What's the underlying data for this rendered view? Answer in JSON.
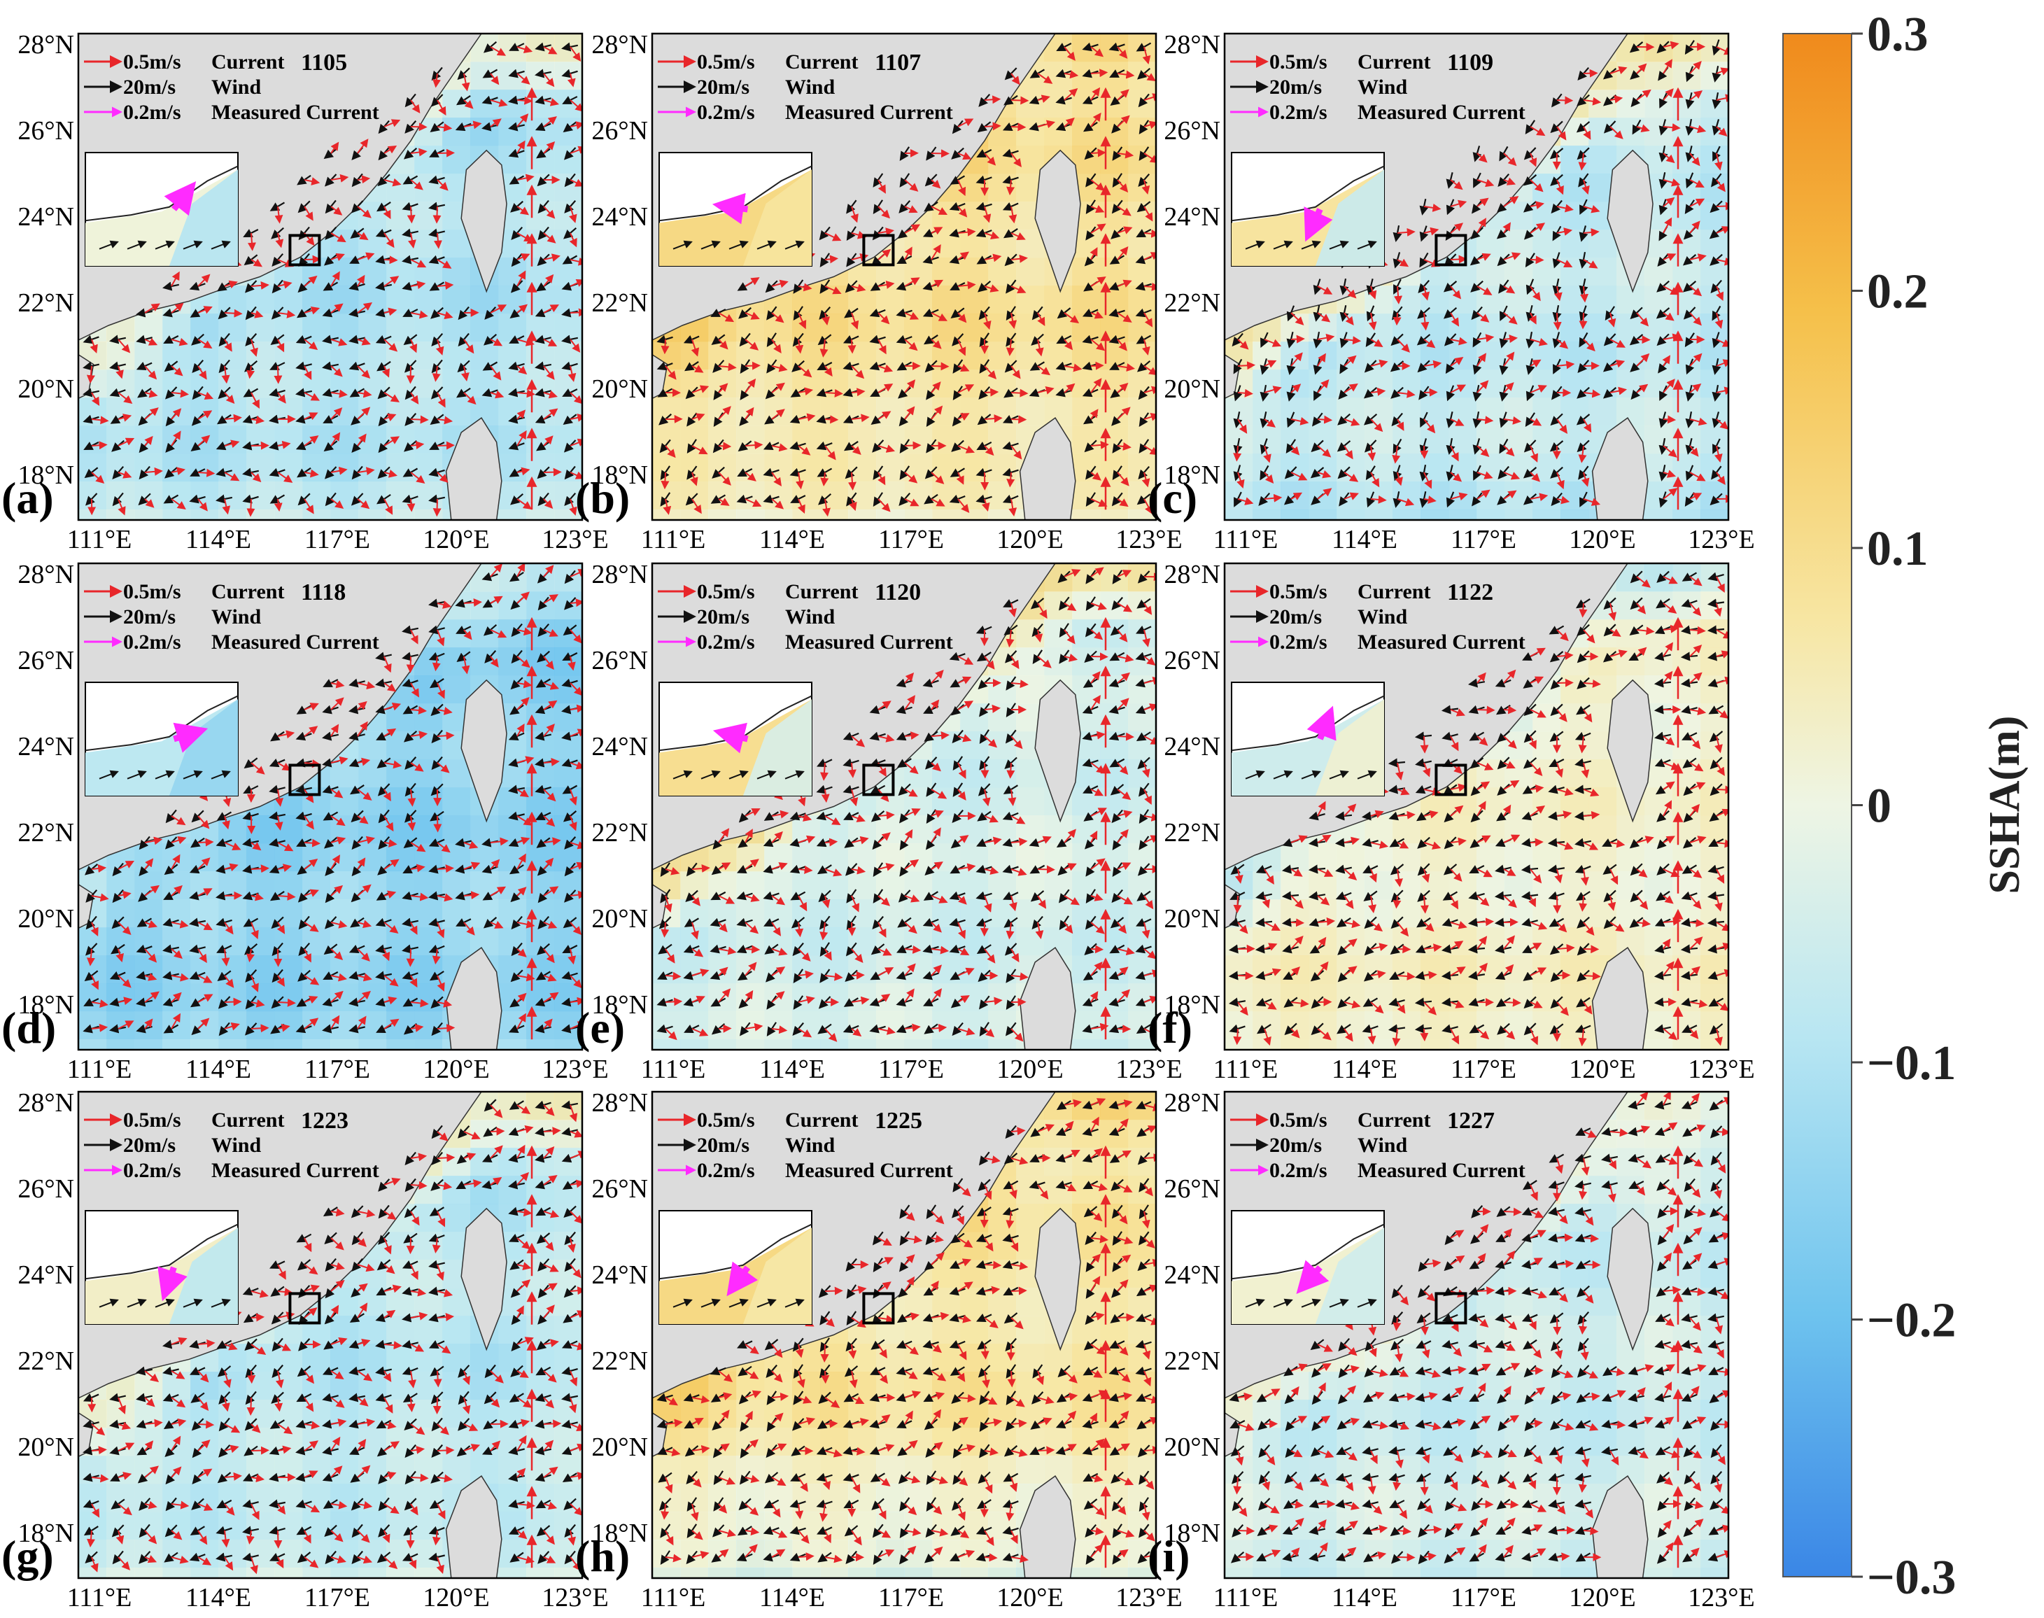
{
  "figure": {
    "colorbar": {
      "title": "SSHA(m)",
      "ticks": [
        "0.3",
        "0.2",
        "0.1",
        "0",
        "−0.1",
        "−0.2",
        "−0.3"
      ],
      "colors": {
        "top": "#f08a1c",
        "upper": "#f5c04a",
        "mid_high": "#f7e6a3",
        "zero": "#eef5e4",
        "mid_low": "#b8e6f2",
        "lower": "#6ec3ee",
        "bottom": "#3a86e6"
      }
    },
    "legend": {
      "current_scale": "0.5m/s",
      "current_label": "Current",
      "wind_scale": "20m/s",
      "wind_label": "Wind",
      "measured_scale": "0.2m/s",
      "measured_label": "Measured Current"
    },
    "axes": {
      "lat_ticks": [
        "28°N",
        "26°N",
        "24°N",
        "22°N",
        "20°N",
        "18°N"
      ],
      "lon_ticks": [
        "111°E",
        "114°E",
        "117°E",
        "120°E",
        "123°E"
      ]
    },
    "arrow_colors": {
      "current": "#e8262a",
      "wind": "#111111",
      "measured": "#ff2bff",
      "land": "#dcdcdc"
    },
    "panels": [
      {
        "label": "(a)",
        "date": "1105"
      },
      {
        "label": "(b)",
        "date": "1107"
      },
      {
        "label": "(c)",
        "date": "1109"
      },
      {
        "label": "(d)",
        "date": "1118"
      },
      {
        "label": "(e)",
        "date": "1120"
      },
      {
        "label": "(f)",
        "date": "1122"
      },
      {
        "label": "(g)",
        "date": "1223"
      },
      {
        "label": "(h)",
        "date": "1225"
      },
      {
        "label": "(i)",
        "date": "1227"
      }
    ]
  }
}
